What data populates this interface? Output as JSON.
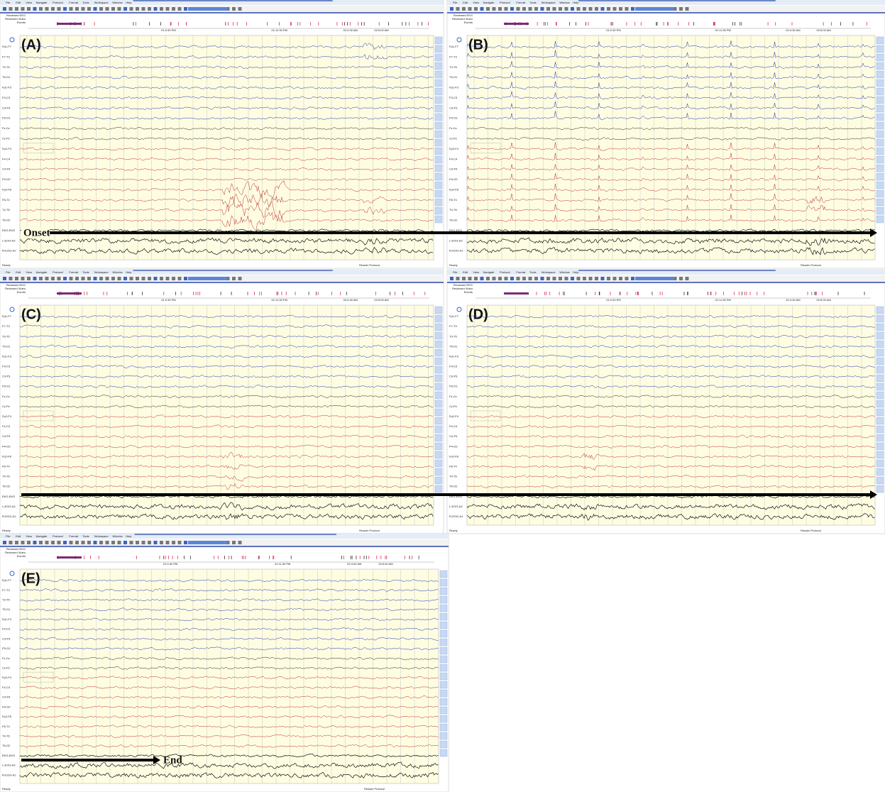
{
  "menu": [
    "File",
    "Edit",
    "View",
    "Navigate",
    "Protocol",
    "Format",
    "Tools",
    "Workspace",
    "Window",
    "Help"
  ],
  "events_labels": [
    "Reviewed EEG",
    "Reviewed Video",
    "Events"
  ],
  "timeline_labels": [
    "01:0:30 PM",
    "01:11:30 PM",
    "02:4:30 AM",
    "02:5:00 AM"
  ],
  "channels": [
    "Fp1-F7",
    "F7-T3",
    "T3-T5",
    "T5-O1",
    "Fp1-F3",
    "F3-C3",
    "C3-P3",
    "P3-O1",
    "Fz-Cz",
    "Cz-Pz",
    "Fp2-F4",
    "F4-C4",
    "C4-P4",
    "P4-O2",
    "Fp2-F8",
    "F8-T4",
    "T4-T6",
    "T6-O2",
    "EKG-EKG",
    "L-EOG-A2",
    "R-EOG-A1"
  ],
  "status": {
    "left": "Ready",
    "right": "Reader Protocol"
  },
  "panels": [
    {
      "label": "(A)",
      "annotation": "Onset"
    },
    {
      "label": "(B)"
    },
    {
      "label": "(C)"
    },
    {
      "label": "(D)"
    },
    {
      "label": "(E)",
      "annotation": "End"
    }
  ]
}
